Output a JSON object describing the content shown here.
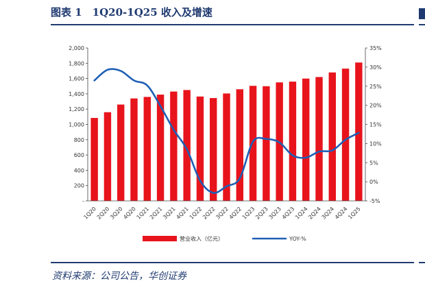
{
  "header": {
    "title": "图表 1　1Q20-1Q25 收入及增速"
  },
  "footer": {
    "source": "资料来源：公司公告，华创证券"
  },
  "colors": {
    "bar": "#e8141c",
    "line": "#1f5fb5",
    "accent": "#1f3a70"
  },
  "chart_data": {
    "type": "bar",
    "categories": [
      "1Q20",
      "2Q20",
      "3Q20",
      "4Q20",
      "1Q21",
      "2Q21",
      "3Q21",
      "4Q21",
      "1Q22",
      "2Q22",
      "3Q22",
      "4Q22",
      "1Q23",
      "2Q23",
      "3Q23",
      "4Q23",
      "1Q24",
      "2Q24",
      "3Q24",
      "4Q24",
      "1Q25"
    ],
    "series": [
      {
        "name": "营业收入（亿元）",
        "type": "bar",
        "axis": "left",
        "values": [
          1085,
          1160,
          1260,
          1340,
          1360,
          1390,
          1430,
          1450,
          1365,
          1345,
          1405,
          1460,
          1505,
          1500,
          1550,
          1560,
          1600,
          1620,
          1680,
          1730,
          1810
        ]
      },
      {
        "name": "YOY-%",
        "type": "line",
        "axis": "right",
        "values": [
          26.5,
          29.3,
          29.0,
          26.5,
          25.2,
          19.8,
          13.6,
          8.5,
          0.3,
          -2.9,
          -1.2,
          0.9,
          10.5,
          11.2,
          10.3,
          6.9,
          6.3,
          7.9,
          8.2,
          11.0,
          12.8
        ]
      }
    ],
    "y_left": {
      "min": 0,
      "max": 2000,
      "step": 200,
      "tick_labels": [
        "-",
        "200",
        "400",
        "600",
        "800",
        "1,000",
        "1,200",
        "1,400",
        "1,600",
        "1,800",
        "2,000"
      ]
    },
    "y_right": {
      "min": -5,
      "max": 35,
      "step": 5,
      "tick_labels": [
        "-5%",
        "0%",
        "5%",
        "10%",
        "15%",
        "20%",
        "25%",
        "30%",
        "35%"
      ]
    },
    "grid": false,
    "legend_position": "bottom"
  }
}
